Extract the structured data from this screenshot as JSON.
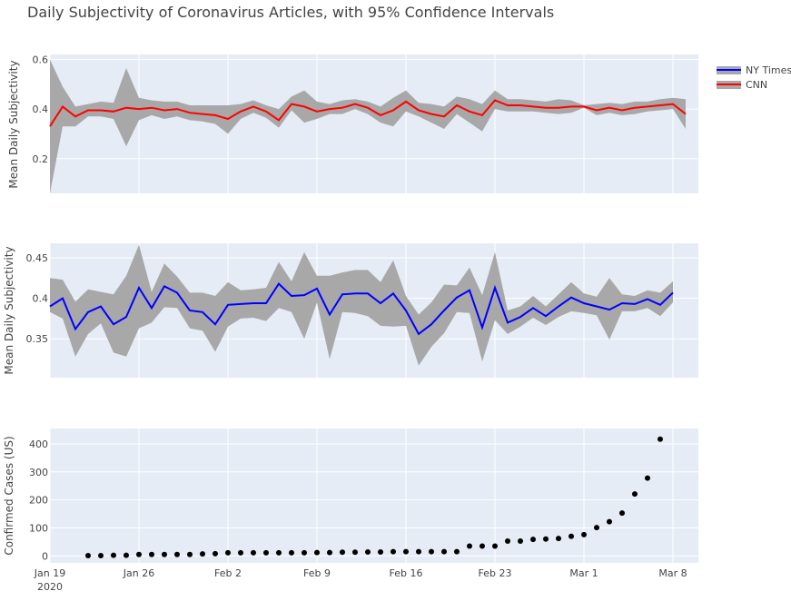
{
  "chart_data": {
    "type": "line",
    "title": "Daily Subjectivity of Coronavirus Articles, with 95% Confidence Intervals",
    "legend": {
      "placement": "top-right",
      "entries": [
        "NY Times",
        "CNN"
      ]
    },
    "colors": {
      "nyt": "#0000ff",
      "cnn": "#ff0000",
      "band": "#a8a8a8",
      "plot_bg": "#e5ecf6",
      "grid": "#ffffff",
      "markers": "#000000"
    },
    "x_ticks": [
      {
        "day": 0,
        "label": "Jan 19",
        "sublabel": "2020"
      },
      {
        "day": 7,
        "label": "Jan 26"
      },
      {
        "day": 14,
        "label": "Feb 2"
      },
      {
        "day": 21,
        "label": "Feb 9"
      },
      {
        "day": 28,
        "label": "Feb 16"
      },
      {
        "day": 35,
        "label": "Feb 23"
      },
      {
        "day": 42,
        "label": "Mar 1"
      },
      {
        "day": 49,
        "label": "Mar 8"
      }
    ],
    "x_range": [
      "2020-01-19",
      "2020-03-10"
    ],
    "panels": [
      {
        "id": "cnn",
        "ylabel": "Mean Daily Subjectivity",
        "ylim": [
          0.06,
          0.62
        ],
        "y_ticks": [
          0.2,
          0.4,
          0.6
        ],
        "y_tick_labels": [
          "0.2",
          "0.4",
          "0.6"
        ],
        "series": [
          {
            "name": "CNN",
            "start": "2020-01-19",
            "mean": [
              0.33,
              0.41,
              0.37,
              0.395,
              0.395,
              0.39,
              0.405,
              0.4,
              0.405,
              0.395,
              0.4,
              0.385,
              0.38,
              0.375,
              0.36,
              0.39,
              0.41,
              0.39,
              0.355,
              0.42,
              0.41,
              0.39,
              0.4,
              0.405,
              0.42,
              0.405,
              0.375,
              0.395,
              0.43,
              0.395,
              0.38,
              0.37,
              0.415,
              0.39,
              0.375,
              0.435,
              0.415,
              0.415,
              0.41,
              0.405,
              0.405,
              0.41,
              0.41,
              0.395,
              0.405,
              0.395,
              0.405,
              0.41,
              0.415,
              0.42,
              0.38
            ],
            "upper": [
              0.6,
              0.49,
              0.41,
              0.42,
              0.43,
              0.425,
              0.565,
              0.445,
              0.435,
              0.43,
              0.43,
              0.415,
              0.415,
              0.415,
              0.415,
              0.42,
              0.435,
              0.415,
              0.4,
              0.45,
              0.475,
              0.43,
              0.42,
              0.435,
              0.44,
              0.43,
              0.41,
              0.445,
              0.475,
              0.425,
              0.42,
              0.41,
              0.45,
              0.44,
              0.42,
              0.475,
              0.44,
              0.44,
              0.435,
              0.43,
              0.44,
              0.435,
              0.415,
              0.42,
              0.425,
              0.42,
              0.43,
              0.43,
              0.44,
              0.445,
              0.44
            ],
            "lower": [
              0.06,
              0.33,
              0.33,
              0.37,
              0.37,
              0.36,
              0.25,
              0.355,
              0.375,
              0.36,
              0.37,
              0.355,
              0.35,
              0.34,
              0.3,
              0.36,
              0.385,
              0.365,
              0.325,
              0.395,
              0.345,
              0.36,
              0.38,
              0.38,
              0.4,
              0.38,
              0.345,
              0.33,
              0.39,
              0.37,
              0.345,
              0.32,
              0.38,
              0.345,
              0.31,
              0.4,
              0.39,
              0.39,
              0.39,
              0.385,
              0.38,
              0.385,
              0.405,
              0.375,
              0.385,
              0.375,
              0.38,
              0.39,
              0.395,
              0.4,
              0.32
            ]
          }
        ]
      },
      {
        "id": "nyt",
        "ylabel": "Mean Daily Subjectivity",
        "ylim": [
          0.302,
          0.468
        ],
        "y_ticks": [
          0.35,
          0.4,
          0.45
        ],
        "y_tick_labels": [
          "0.35",
          "0.4",
          "0.45"
        ],
        "series": [
          {
            "name": "NY Times",
            "start": "2020-01-19",
            "mean": [
              0.39,
              0.4,
              0.362,
              0.383,
              0.39,
              0.368,
              0.377,
              0.413,
              0.388,
              0.415,
              0.407,
              0.385,
              0.383,
              0.368,
              0.392,
              0.393,
              0.394,
              0.394,
              0.418,
              0.403,
              0.404,
              0.412,
              0.38,
              0.405,
              0.406,
              0.406,
              0.394,
              0.406,
              0.385,
              0.356,
              0.368,
              0.385,
              0.401,
              0.41,
              0.364,
              0.413,
              0.37,
              0.377,
              0.388,
              0.378,
              0.39,
              0.401,
              0.394,
              0.39,
              0.386,
              0.394,
              0.393,
              0.399,
              0.392,
              0.407
            ],
            "upper": [
              0.425,
              0.423,
              0.396,
              0.411,
              0.408,
              0.405,
              0.428,
              0.466,
              0.408,
              0.443,
              0.427,
              0.407,
              0.407,
              0.403,
              0.42,
              0.41,
              0.411,
              0.413,
              0.445,
              0.421,
              0.457,
              0.428,
              0.428,
              0.432,
              0.435,
              0.435,
              0.42,
              0.447,
              0.403,
              0.38,
              0.395,
              0.417,
              0.416,
              0.438,
              0.404,
              0.457,
              0.385,
              0.39,
              0.403,
              0.39,
              0.405,
              0.42,
              0.406,
              0.402,
              0.425,
              0.405,
              0.403,
              0.41,
              0.407,
              0.421
            ],
            "lower": [
              0.383,
              0.375,
              0.328,
              0.356,
              0.369,
              0.333,
              0.328,
              0.363,
              0.37,
              0.389,
              0.388,
              0.363,
              0.36,
              0.334,
              0.365,
              0.375,
              0.376,
              0.372,
              0.388,
              0.383,
              0.35,
              0.395,
              0.325,
              0.383,
              0.382,
              0.378,
              0.366,
              0.365,
              0.366,
              0.317,
              0.34,
              0.357,
              0.383,
              0.382,
              0.322,
              0.373,
              0.356,
              0.365,
              0.376,
              0.367,
              0.377,
              0.384,
              0.382,
              0.379,
              0.349,
              0.384,
              0.384,
              0.388,
              0.378,
              0.395
            ]
          }
        ]
      },
      {
        "id": "cases",
        "type": "scatter",
        "ylabel": "Confirmed Cases (US)",
        "ylim": [
          -25,
          455
        ],
        "y_ticks": [
          0,
          100,
          200,
          300,
          400
        ],
        "y_tick_labels": [
          "0",
          "100",
          "200",
          "300",
          "400"
        ],
        "series": [
          {
            "name": "Confirmed Cases (US)",
            "start": "2020-01-22",
            "values": [
              1,
              1,
              2,
              2,
              5,
              5,
              5,
              5,
              5,
              7,
              8,
              11,
              11,
              11,
              11,
              11,
              11,
              11,
              12,
              12,
              13,
              13,
              14,
              14,
              15,
              15,
              15,
              15,
              15,
              15,
              35,
              35,
              35,
              53,
              53,
              59,
              60,
              62,
              70,
              76,
              101,
              122,
              153,
              221,
              278,
              417
            ]
          }
        ]
      }
    ]
  }
}
